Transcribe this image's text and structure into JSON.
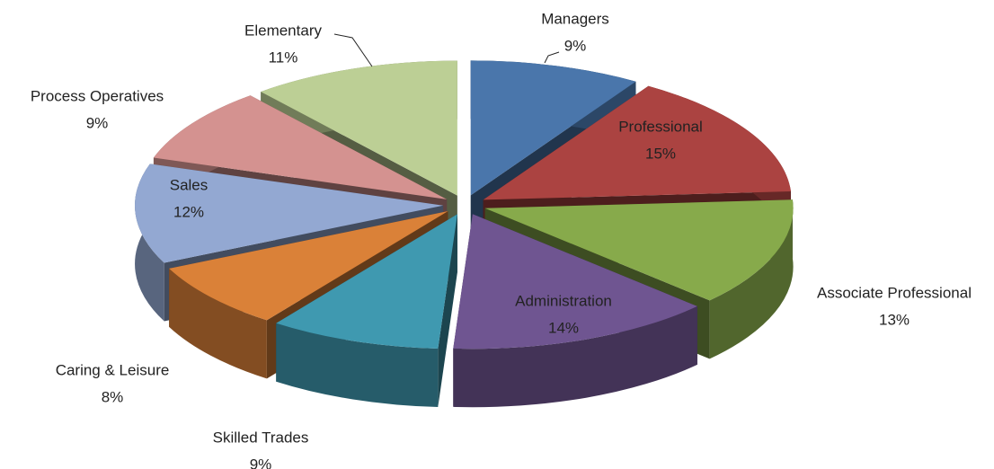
{
  "chart_data": {
    "type": "pie3d",
    "categories": [
      "Managers",
      "Professional",
      "Associate Professional",
      "Administration",
      "Skilled Trades",
      "Caring & Leisure",
      "Sales",
      "Process Operatives",
      "Elementary"
    ],
    "values": [
      9,
      15,
      13,
      14,
      9,
      8,
      12,
      9,
      11
    ],
    "value_labels": [
      "9%",
      "15%",
      "13%",
      "14%",
      "9%",
      "8%",
      "12%",
      "9%",
      "11%"
    ],
    "colors": [
      "#4a76ab",
      "#ab4341",
      "#87aa4b",
      "#6f5591",
      "#3f99b0",
      "#da8138",
      "#93a8d2",
      "#d49290",
      "#bccf95"
    ]
  }
}
